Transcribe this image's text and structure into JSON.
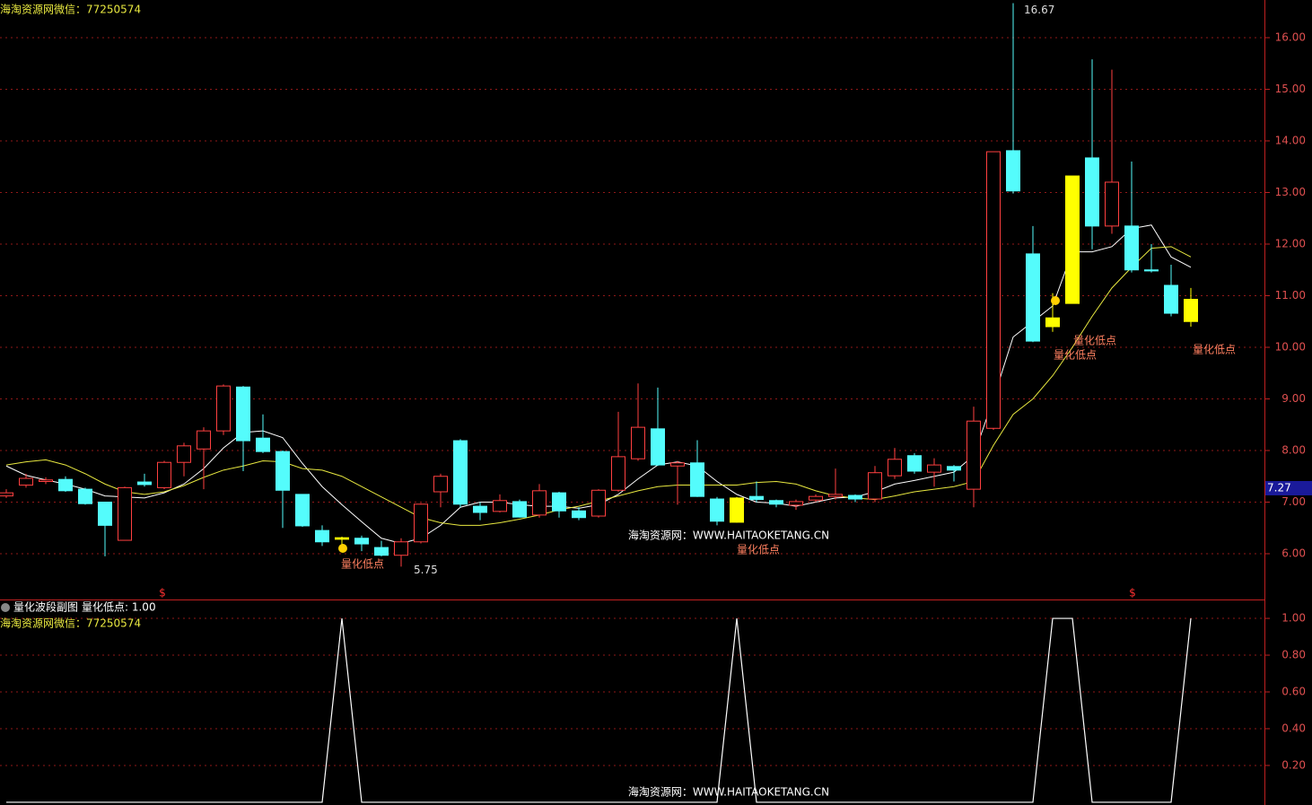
{
  "chart_data": [
    {
      "type": "candlestick",
      "title": "海淘资源网微信：77250574",
      "open": [
        7.12,
        7.33,
        7.4,
        7.44,
        7.25,
        7.0,
        6.26,
        7.39,
        7.28,
        7.77,
        8.03,
        8.38,
        9.23,
        8.24,
        7.98,
        7.15,
        6.45,
        6.31,
        6.3,
        6.12,
        5.97,
        6.23,
        7.2,
        8.19,
        6.92,
        6.82,
        7.01,
        6.75,
        7.18,
        6.83,
        6.73,
        7.23,
        7.84,
        8.42,
        7.7,
        7.76,
        7.06,
        7.08,
        7.11,
        7.03,
        6.94,
        7.04,
        7.11,
        7.13,
        7.06,
        7.51,
        7.9,
        7.58,
        7.69,
        7.25,
        8.43,
        13.81,
        11.81,
        10.57,
        10.85,
        13.67,
        12.35,
        12.35,
        11.5,
        11.2,
        10.93
      ],
      "high": [
        7.25,
        7.55,
        7.48,
        7.5,
        7.28,
        7.0,
        7.3,
        7.55,
        7.8,
        8.15,
        8.45,
        9.28,
        9.25,
        8.7,
        8.0,
        7.15,
        6.55,
        6.33,
        6.35,
        6.25,
        6.3,
        6.98,
        7.55,
        8.22,
        7.0,
        7.15,
        7.05,
        7.35,
        7.2,
        6.9,
        7.25,
        8.75,
        9.3,
        9.22,
        7.8,
        8.2,
        7.1,
        7.1,
        7.4,
        7.05,
        7.05,
        7.15,
        7.65,
        7.15,
        7.7,
        8.05,
        7.95,
        7.85,
        7.72,
        8.85,
        13.79,
        16.67,
        12.35,
        11.05,
        13.32,
        15.58,
        15.38,
        13.6,
        12.0,
        11.6,
        11.15
      ],
      "low": [
        7.08,
        7.28,
        7.35,
        7.2,
        6.95,
        5.95,
        6.26,
        7.3,
        7.25,
        7.5,
        7.25,
        8.3,
        7.6,
        7.95,
        6.5,
        6.52,
        6.15,
        6.15,
        6.05,
        5.95,
        5.75,
        6.2,
        6.9,
        6.9,
        6.65,
        6.8,
        6.7,
        6.7,
        6.7,
        6.65,
        6.7,
        7.2,
        7.8,
        7.7,
        6.95,
        7.1,
        6.55,
        6.6,
        7.0,
        6.9,
        6.85,
        7.0,
        7.05,
        7.0,
        7.0,
        7.45,
        7.55,
        7.3,
        7.4,
        6.9,
        8.4,
        12.98,
        10.1,
        10.3,
        10.85,
        11.9,
        12.2,
        11.45,
        11.45,
        10.6,
        10.4
      ],
      "close": [
        7.18,
        7.46,
        7.43,
        7.22,
        6.97,
        6.55,
        7.28,
        7.34,
        7.77,
        8.09,
        8.38,
        9.25,
        8.19,
        7.98,
        7.23,
        6.54,
        6.23,
        6.28,
        6.19,
        5.97,
        6.23,
        6.96,
        7.5,
        6.96,
        6.8,
        7.03,
        6.71,
        7.22,
        6.83,
        6.7,
        7.23,
        7.88,
        8.45,
        7.72,
        7.76,
        7.11,
        6.63,
        6.61,
        7.05,
        6.96,
        7.01,
        7.11,
        7.15,
        7.06,
        7.57,
        7.83,
        7.6,
        7.72,
        7.62,
        8.57,
        13.79,
        13.03,
        10.12,
        10.4,
        13.32,
        12.35,
        13.2,
        11.5,
        11.48,
        10.66,
        10.5
      ],
      "up_color": "#ff4040",
      "down_color": "#54fcfc",
      "signal_color": "#ffff00",
      "series": [
        {
          "color": "#ffffff",
          "values": [
            7.7,
            7.52,
            7.43,
            7.35,
            7.25,
            7.12,
            7.1,
            7.08,
            7.18,
            7.35,
            7.65,
            8.05,
            8.35,
            8.38,
            8.25,
            7.75,
            7.3,
            6.95,
            6.62,
            6.3,
            6.2,
            6.3,
            6.55,
            6.9,
            7.0,
            7.0,
            6.95,
            6.92,
            6.92,
            6.88,
            6.95,
            7.15,
            7.45,
            7.72,
            7.78,
            7.7,
            7.4,
            7.15,
            7.0,
            6.98,
            6.92,
            7.0,
            7.08,
            7.1,
            7.2,
            7.35,
            7.42,
            7.5,
            7.58,
            7.9,
            9.0,
            10.2,
            10.5,
            10.8,
            11.85,
            11.85,
            11.95,
            12.3,
            12.37,
            11.75,
            11.55
          ]
        },
        {
          "color": "#e8e840",
          "values": [
            7.72,
            7.78,
            7.82,
            7.72,
            7.55,
            7.35,
            7.2,
            7.15,
            7.2,
            7.32,
            7.48,
            7.62,
            7.7,
            7.8,
            7.78,
            7.65,
            7.62,
            7.5,
            7.3,
            7.1,
            6.9,
            6.7,
            6.6,
            6.55,
            6.55,
            6.6,
            6.67,
            6.75,
            6.85,
            6.92,
            7.02,
            7.12,
            7.22,
            7.3,
            7.33,
            7.33,
            7.33,
            7.33,
            7.38,
            7.4,
            7.35,
            7.22,
            7.12,
            7.08,
            7.05,
            7.12,
            7.2,
            7.25,
            7.3,
            7.4,
            8.1,
            8.7,
            9.0,
            9.45,
            10.0,
            10.6,
            11.15,
            11.55,
            11.92,
            11.95,
            11.75
          ]
        }
      ],
      "ylim": [
        5.113,
        16.73
      ],
      "yticks": [
        {
          "value": 6,
          "label": "6.00"
        },
        {
          "value": 7,
          "label": "7.00"
        },
        {
          "value": 8,
          "label": "8.00"
        },
        {
          "value": 9,
          "label": "9.00"
        },
        {
          "value": 10,
          "label": "10.00"
        },
        {
          "value": 11,
          "label": "11.00"
        },
        {
          "value": 12,
          "label": "12.00"
        },
        {
          "value": 13,
          "label": "13.00"
        },
        {
          "value": 14,
          "label": "14.00"
        },
        {
          "value": 15,
          "label": "15.00"
        },
        {
          "value": 16,
          "label": "16.00"
        }
      ],
      "price_marker": 7.27,
      "annotations": [
        "量化低点",
        "量化低点",
        "量化低点",
        "量化低点",
        "量化低点",
        "$",
        "$"
      ],
      "watermark": "海淘资源网：WWW.HAITAOKETANG.CN",
      "grid": true
    },
    {
      "type": "line",
      "title": "量化波段副图",
      "legend_text": "量化低点: 1.00",
      "subtitle": "海淘资源网微信：77250574",
      "series": [
        {
          "name": "量化低点",
          "color": "#ffffff",
          "values": [
            0,
            0,
            0,
            0,
            0,
            0,
            0,
            0,
            0,
            0,
            0,
            0,
            0,
            0,
            0,
            0,
            0,
            1,
            0,
            0,
            0,
            0,
            0,
            0,
            0,
            0,
            0,
            0,
            0,
            0,
            0,
            0,
            0,
            0,
            0,
            0,
            0,
            1,
            0,
            0,
            0,
            0,
            0,
            0,
            0,
            0,
            0,
            0,
            0,
            0,
            0,
            0,
            0,
            1,
            1,
            0,
            0,
            0,
            0,
            0,
            1
          ]
        }
      ],
      "ylim": [
        -0.015,
        1.093
      ],
      "yticks": [
        {
          "value": 0.2,
          "label": "0.20"
        },
        {
          "value": 0.4,
          "label": "0.40"
        },
        {
          "value": 0.6,
          "label": "0.60"
        },
        {
          "value": 0.8,
          "label": "0.80"
        },
        {
          "value": 1,
          "label": "1.00"
        }
      ],
      "watermark": "海淘资源网：WWW.HAITAOKETANG.CN",
      "grid": true
    }
  ]
}
